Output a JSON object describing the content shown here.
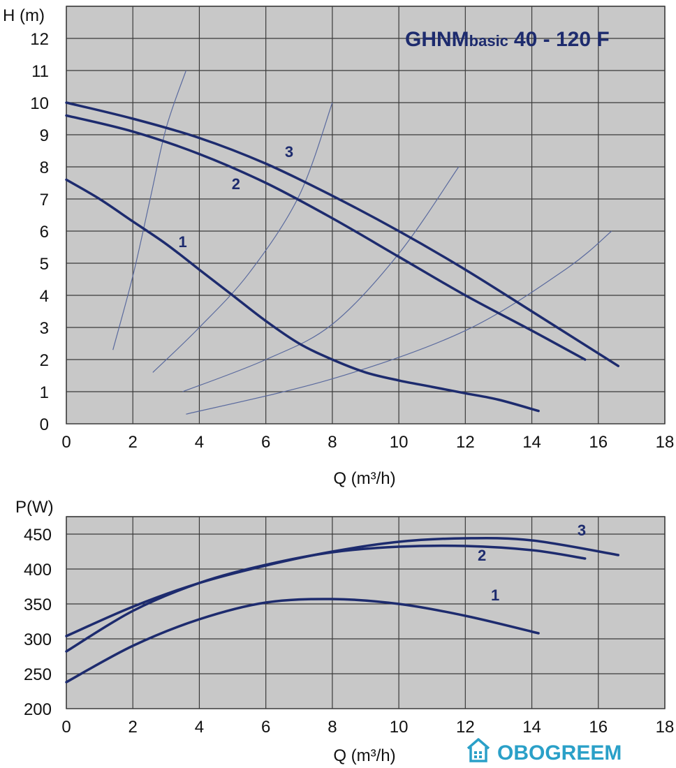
{
  "chart_data": [
    {
      "type": "line",
      "title_main": "GHNM",
      "title_sub": "basic",
      "title_model": "40 - 120 F",
      "xlabel": "Q (m³/h)",
      "ylabel": "H (m)",
      "xlim": [
        0,
        18
      ],
      "ylim": [
        0,
        13
      ],
      "x_ticks": [
        "0",
        "2",
        "4",
        "6",
        "8",
        "10",
        "12",
        "14",
        "16",
        "18"
      ],
      "y_ticks": [
        "0",
        "1",
        "2",
        "3",
        "4",
        "5",
        "6",
        "7",
        "8",
        "9",
        "10",
        "11",
        "12"
      ],
      "grid": true,
      "colors": {
        "plot_bg": "#c8c8c8",
        "curve": "#1d2b6e",
        "system_curve": "#5a6a9e",
        "grid": "#3a3a3a"
      },
      "series": [
        {
          "name": "1",
          "x": [
            0,
            1,
            2,
            3,
            4,
            5,
            6,
            7,
            8,
            9,
            10,
            11,
            12,
            13,
            14.2
          ],
          "values": [
            7.6,
            7.0,
            6.3,
            5.6,
            4.8,
            4.0,
            3.2,
            2.5,
            2.0,
            1.6,
            1.35,
            1.15,
            0.95,
            0.75,
            0.4
          ]
        },
        {
          "name": "2",
          "x": [
            0,
            2,
            4,
            6,
            8,
            10,
            12,
            14,
            15.6
          ],
          "values": [
            9.6,
            9.1,
            8.4,
            7.5,
            6.4,
            5.2,
            4.0,
            2.9,
            2.0
          ]
        },
        {
          "name": "3",
          "x": [
            0,
            2,
            4,
            6,
            8,
            10,
            12,
            14,
            16.6
          ],
          "values": [
            10.0,
            9.5,
            8.9,
            8.1,
            7.1,
            6.0,
            4.8,
            3.5,
            1.8
          ]
        }
      ],
      "system_curves": [
        {
          "x": [
            1.4,
            2.0,
            2.5,
            3.0,
            3.6
          ],
          "values": [
            2.3,
            4.6,
            6.9,
            9.2,
            11.0
          ]
        },
        {
          "x": [
            2.6,
            4.0,
            5.5,
            7.0,
            8.0
          ],
          "values": [
            1.6,
            3.0,
            4.7,
            7.1,
            10.0
          ]
        },
        {
          "x": [
            3.5,
            6.0,
            8.0,
            10.0,
            11.8
          ],
          "values": [
            1.0,
            2.0,
            3.1,
            5.3,
            8.0
          ]
        },
        {
          "x": [
            3.6,
            8.0,
            12.0,
            15.0,
            16.4
          ],
          "values": [
            0.3,
            1.4,
            2.9,
            4.8,
            6.0
          ]
        }
      ],
      "curve_labels": [
        {
          "text": "1",
          "x": 3.5,
          "y": 5.5
        },
        {
          "text": "2",
          "x": 5.1,
          "y": 7.3
        },
        {
          "text": "3",
          "x": 6.7,
          "y": 8.3
        }
      ]
    },
    {
      "type": "line",
      "xlabel": "Q (m³/h)",
      "ylabel": "P(W)",
      "xlim": [
        0,
        18
      ],
      "ylim": [
        200,
        475
      ],
      "x_ticks": [
        "0",
        "2",
        "4",
        "6",
        "8",
        "10",
        "12",
        "14",
        "16",
        "18"
      ],
      "y_ticks": [
        "200",
        "250",
        "300",
        "350",
        "400",
        "450"
      ],
      "grid": true,
      "series": [
        {
          "name": "1",
          "x": [
            0,
            2,
            4,
            6,
            8,
            10,
            12,
            14.2
          ],
          "values": [
            238,
            290,
            328,
            352,
            357,
            350,
            333,
            308
          ]
        },
        {
          "name": "2",
          "x": [
            0,
            2,
            4,
            6,
            8,
            10,
            12,
            14,
            15.6
          ],
          "values": [
            282,
            340,
            380,
            406,
            424,
            432,
            433,
            427,
            415
          ]
        },
        {
          "name": "3",
          "x": [
            0,
            2,
            4,
            6,
            8,
            10,
            12,
            14,
            16.6
          ],
          "values": [
            304,
            346,
            380,
            405,
            425,
            439,
            444,
            441,
            420
          ]
        }
      ],
      "curve_labels": [
        {
          "text": "1",
          "x": 12.9,
          "y": 355
        },
        {
          "text": "2",
          "x": 12.5,
          "y": 412
        },
        {
          "text": "3",
          "x": 15.5,
          "y": 448
        }
      ]
    }
  ],
  "watermark": {
    "text": "OBOGREEM",
    "icon": "house-icon"
  }
}
